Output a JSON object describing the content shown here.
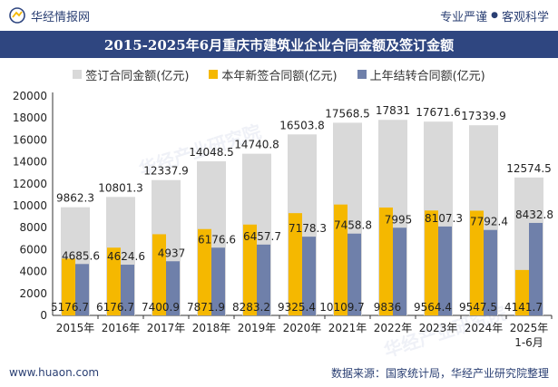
{
  "header": {
    "brand": "华经情报网",
    "tagline_left": "专业严谨",
    "tagline_sep": "●",
    "tagline_right": "客观科学"
  },
  "footer": {
    "url": "www.huaon.com",
    "source": "数据来源：国家统计局，华经产业研究院整理"
  },
  "watermark": "华经产业研究院",
  "colors": {
    "total": "#d9d9d9",
    "new": "#f5b800",
    "carry": "#6f80aa",
    "title_bg": "#2f4680"
  },
  "chart_data": {
    "type": "bar",
    "title": "2015-2025年6月重庆市建筑业企业合同金额及签订金额",
    "categories": [
      "2015年",
      "2016年",
      "2017年",
      "2018年",
      "2019年",
      "2020年",
      "2021年",
      "2022年",
      "2023年",
      "2024年",
      "2025年1-6月"
    ],
    "series": [
      {
        "name": "签订合同金额(亿元)",
        "values": [
          9862.3,
          10801.3,
          12337.9,
          14048.5,
          14740.8,
          16503.8,
          17568.5,
          17831,
          17671.6,
          17339.9,
          12574.5
        ]
      },
      {
        "name": "本年新签合同额(亿元)",
        "values": [
          5176.7,
          6176.7,
          7400.9,
          7871.9,
          8283.2,
          9325.4,
          10109.7,
          9836,
          9564.4,
          9547.5,
          4141.7
        ]
      },
      {
        "name": "上年结转合同额(亿元)",
        "values": [
          4685.6,
          4624.6,
          4937,
          6176.6,
          6457.7,
          7178.3,
          7458.8,
          7995,
          8107.3,
          7792.4,
          8432.8
        ]
      }
    ],
    "total_labels": [
      "9862.3",
      "10801.3",
      "12337.9",
      "14048.5",
      "14740.8",
      "16503.8",
      "17568.5",
      "17831",
      "17671.6",
      "17339.9",
      "12574.5"
    ],
    "new_labels": [
      "5176.7",
      "6176.7",
      "7400.9",
      "7871.9",
      "8283.2",
      "9325.4",
      "10109.7",
      "9836",
      "9564.4",
      "9547.5",
      "4141.7"
    ],
    "carry_labels": [
      "4685.6",
      "4624.6",
      "4937",
      "6176.6",
      "6457.7",
      "7178.3",
      "7458.8",
      "7995",
      "8107.3",
      "7792.4",
      "8432.8"
    ],
    "yticks": [
      "0",
      "2000",
      "4000",
      "6000",
      "8000",
      "10000",
      "12000",
      "14000",
      "16000",
      "18000",
      "20000"
    ],
    "ylim": [
      0,
      20000
    ],
    "xlabel": "",
    "ylabel": ""
  }
}
